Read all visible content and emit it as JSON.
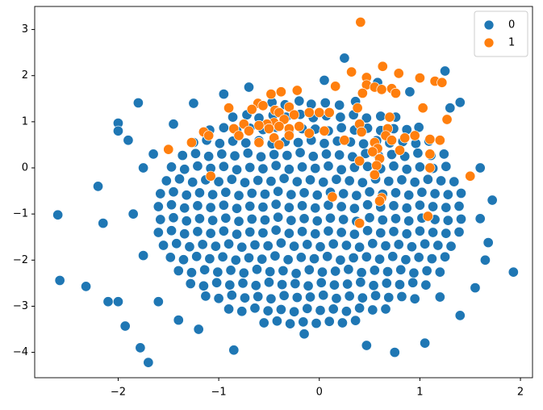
{
  "chart_data": {
    "type": "scatter",
    "xlim": [
      -2.83,
      2.12
    ],
    "ylim": [
      -4.55,
      3.5
    ],
    "xticks": [
      {
        "value": -2,
        "label": "−2"
      },
      {
        "value": -1,
        "label": "−1"
      },
      0,
      1,
      2
    ],
    "yticks": [
      {
        "value": -4,
        "label": "−4"
      },
      {
        "value": -3,
        "label": "−3"
      },
      {
        "value": -2,
        "label": "−2"
      },
      {
        "value": -1,
        "label": "−1"
      },
      0,
      1,
      2,
      3
    ],
    "grid": false,
    "legend": "upper right",
    "series": [
      {
        "name": "0",
        "color": "#1f77b4",
        "x": [
          -0.47,
          -0.34,
          -0.2,
          -0.08,
          0.06,
          0.2,
          0.36,
          -0.86,
          -0.72,
          -0.6,
          -0.46,
          -0.33,
          -0.19,
          -0.06,
          0.07,
          0.21,
          0.34,
          0.47,
          0.61,
          0.76,
          -1.09,
          -0.95,
          -0.82,
          -0.69,
          -0.56,
          -0.43,
          -0.3,
          -0.17,
          -0.04,
          0.09,
          0.22,
          0.35,
          0.48,
          0.61,
          0.74,
          0.87,
          0.99,
          -1.25,
          -1.12,
          -0.99,
          -0.86,
          -0.73,
          -0.6,
          -0.47,
          -0.34,
          -0.21,
          -0.08,
          0.05,
          0.18,
          0.31,
          0.44,
          0.57,
          0.7,
          0.83,
          0.96,
          1.09,
          -1.36,
          -1.23,
          -1.1,
          -0.97,
          -0.84,
          -0.71,
          -0.58,
          -0.45,
          -0.32,
          -0.19,
          -0.06,
          0.07,
          0.2,
          0.33,
          0.46,
          0.59,
          0.72,
          0.85,
          0.98,
          1.11,
          1.24,
          -1.47,
          -1.34,
          -1.21,
          -1.08,
          -0.95,
          -0.82,
          -0.69,
          -0.56,
          -0.43,
          -0.3,
          -0.17,
          -0.04,
          0.09,
          0.22,
          0.35,
          0.48,
          0.61,
          0.74,
          0.87,
          1.0,
          1.13,
          1.26,
          -1.52,
          -1.39,
          -1.26,
          -1.13,
          -1.0,
          -0.87,
          -0.74,
          -0.61,
          -0.48,
          -0.35,
          -0.22,
          -0.09,
          0.04,
          0.17,
          0.3,
          0.43,
          0.56,
          0.69,
          0.82,
          0.95,
          1.08,
          1.21,
          1.34,
          -1.58,
          -1.45,
          -1.32,
          -1.19,
          -1.06,
          -0.93,
          -0.8,
          -0.67,
          -0.54,
          -0.41,
          -0.28,
          -0.15,
          -0.02,
          0.11,
          0.24,
          0.37,
          0.5,
          0.63,
          0.76,
          0.89,
          1.02,
          1.15,
          1.28,
          1.41,
          -1.6,
          -1.47,
          -1.34,
          -1.21,
          -1.08,
          -0.95,
          -0.82,
          -0.69,
          -0.56,
          -0.43,
          -0.3,
          -0.17,
          -0.04,
          0.09,
          0.22,
          0.35,
          0.48,
          0.61,
          0.74,
          0.87,
          1.0,
          1.13,
          1.26,
          1.39,
          -1.58,
          -1.45,
          -1.32,
          -1.19,
          -1.06,
          -0.93,
          -0.8,
          -0.67,
          -0.54,
          -0.41,
          -0.28,
          -0.15,
          -0.02,
          0.11,
          0.24,
          0.37,
          0.5,
          0.63,
          0.76,
          0.89,
          1.02,
          1.15,
          1.28,
          1.41,
          -1.6,
          -1.47,
          -1.34,
          -1.21,
          -1.08,
          -0.95,
          -0.82,
          -0.69,
          -0.56,
          -0.43,
          -0.3,
          -0.17,
          -0.04,
          0.09,
          0.22,
          0.35,
          0.48,
          0.61,
          0.74,
          0.87,
          1.0,
          1.13,
          1.26,
          1.39,
          -1.55,
          -1.42,
          -1.29,
          -1.16,
          -1.03,
          -0.9,
          -0.77,
          -0.64,
          -0.51,
          -0.38,
          -0.25,
          -0.12,
          0.01,
          0.14,
          0.27,
          0.4,
          0.53,
          0.66,
          0.79,
          0.92,
          1.05,
          1.18,
          1.31,
          -1.48,
          -1.35,
          -1.22,
          -1.09,
          -0.96,
          -0.83,
          -0.7,
          -0.57,
          -0.44,
          -0.31,
          -0.18,
          -0.05,
          0.08,
          0.21,
          0.34,
          0.47,
          0.6,
          0.73,
          0.86,
          0.99,
          1.12,
          1.25,
          -1.4,
          -1.27,
          -1.14,
          -1.01,
          -0.88,
          -0.75,
          -0.62,
          -0.49,
          -0.36,
          -0.23,
          -0.1,
          0.03,
          0.16,
          0.29,
          0.42,
          0.55,
          0.68,
          0.81,
          0.94,
          1.07,
          1.2,
          -1.28,
          -1.15,
          -1.02,
          -0.89,
          -0.76,
          -0.63,
          -0.5,
          -0.37,
          -0.24,
          -0.11,
          0.02,
          0.15,
          0.28,
          0.41,
          0.54,
          0.67,
          0.8,
          0.93,
          1.06,
          -1.13,
          -1.0,
          -0.87,
          -0.74,
          -0.61,
          -0.48,
          -0.35,
          -0.22,
          -0.09,
          0.04,
          0.17,
          0.3,
          0.43,
          0.56,
          0.69,
          0.82,
          0.95,
          -0.9,
          -0.77,
          -0.64,
          -0.51,
          -0.38,
          -0.25,
          -0.12,
          0.01,
          0.14,
          0.27,
          0.4,
          0.53,
          0.66,
          -0.55,
          -0.42,
          -0.29,
          -0.16,
          -0.03,
          0.1,
          0.23,
          0.36,
          -2.6,
          -2.58,
          -2.32,
          -2.0,
          -2.0,
          -1.8,
          -1.93,
          -1.78,
          -1.7,
          -2.2,
          -2.15,
          -2.1,
          -2.0,
          -1.9,
          -1.65,
          1.93,
          1.68,
          1.65,
          1.72,
          1.6,
          1.4,
          1.25,
          0.25,
          0.58,
          -0.85,
          -0.15,
          0.47,
          0.75,
          1.05,
          1.4,
          1.2,
          -1.2,
          -1.4,
          -1.6,
          1.55,
          1.6,
          -1.75,
          -1.85,
          -1.75,
          -1.45,
          -1.25,
          -0.95,
          -0.7,
          0.05,
          0.9,
          1.3
        ],
        "values": [
          1.42,
          1.37,
          1.45,
          1.38,
          1.41,
          1.36,
          1.44,
          1.1,
          1.15,
          1.08,
          1.14,
          1.1,
          1.16,
          1.09,
          1.13,
          1.1,
          1.15,
          1.08,
          1.12,
          1.1,
          0.82,
          0.87,
          0.8,
          0.86,
          0.83,
          0.88,
          0.81,
          0.85,
          0.84,
          0.8,
          0.87,
          0.82,
          0.86,
          0.81,
          0.85,
          0.83,
          0.88,
          0.55,
          0.6,
          0.53,
          0.58,
          0.54,
          0.59,
          0.52,
          0.57,
          0.55,
          0.6,
          0.53,
          0.58,
          0.56,
          0.52,
          0.59,
          0.54,
          0.57,
          0.53,
          0.58,
          0.27,
          0.31,
          0.25,
          0.3,
          0.26,
          0.32,
          0.24,
          0.29,
          0.27,
          0.33,
          0.25,
          0.3,
          0.28,
          0.24,
          0.31,
          0.26,
          0.29,
          0.25,
          0.32,
          0.27,
          0.3,
          0.02,
          -0.03,
          0.04,
          -0.01,
          0.03,
          -0.04,
          0.01,
          -0.02,
          0.05,
          -0.03,
          0.02,
          -0.01,
          0.04,
          -0.04,
          0.01,
          0.03,
          -0.02,
          0.04,
          -0.03,
          0.02,
          -0.01,
          0.03,
          -0.28,
          -0.24,
          -0.31,
          -0.26,
          -0.3,
          -0.25,
          -0.32,
          -0.27,
          -0.29,
          -0.23,
          -0.3,
          -0.26,
          -0.31,
          -0.25,
          -0.28,
          -0.32,
          -0.24,
          -0.29,
          -0.26,
          -0.31,
          -0.25,
          -0.28,
          -0.3,
          -0.56,
          -0.52,
          -0.59,
          -0.54,
          -0.58,
          -0.53,
          -0.6,
          -0.55,
          -0.57,
          -0.51,
          -0.58,
          -0.54,
          -0.59,
          -0.53,
          -0.56,
          -0.6,
          -0.52,
          -0.57,
          -0.54,
          -0.59,
          -0.53,
          -0.56,
          -0.58,
          -0.55,
          -0.84,
          -0.8,
          -0.87,
          -0.82,
          -0.86,
          -0.81,
          -0.88,
          -0.83,
          -0.85,
          -0.79,
          -0.86,
          -0.82,
          -0.87,
          -0.81,
          -0.84,
          -0.88,
          -0.8,
          -0.85,
          -0.82,
          -0.87,
          -0.81,
          -0.84,
          -0.86,
          -0.83,
          -1.12,
          -1.08,
          -1.15,
          -1.1,
          -1.14,
          -1.09,
          -1.16,
          -1.11,
          -1.13,
          -1.07,
          -1.14,
          -1.1,
          -1.15,
          -1.09,
          -1.12,
          -1.16,
          -1.08,
          -1.13,
          -1.1,
          -1.15,
          -1.09,
          -1.12,
          -1.14,
          -1.11,
          -1.4,
          -1.36,
          -1.43,
          -1.38,
          -1.42,
          -1.37,
          -1.44,
          -1.39,
          -1.41,
          -1.35,
          -1.42,
          -1.38,
          -1.43,
          -1.37,
          -1.4,
          -1.44,
          -1.36,
          -1.41,
          -1.38,
          -1.43,
          -1.37,
          -1.4,
          -1.42,
          -1.39,
          -1.68,
          -1.64,
          -1.71,
          -1.66,
          -1.7,
          -1.65,
          -1.72,
          -1.67,
          -1.69,
          -1.63,
          -1.7,
          -1.66,
          -1.71,
          -1.65,
          -1.68,
          -1.72,
          -1.64,
          -1.69,
          -1.66,
          -1.71,
          -1.65,
          -1.68,
          -1.7,
          -1.94,
          -1.99,
          -1.92,
          -1.97,
          -1.93,
          -2.0,
          -1.95,
          -1.98,
          -1.91,
          -1.99,
          -1.94,
          -1.97,
          -1.92,
          -2.0,
          -1.95,
          -1.93,
          -1.98,
          -1.92,
          -1.99,
          -1.94,
          -1.97,
          -1.93,
          -2.23,
          -2.27,
          -2.21,
          -2.26,
          -2.22,
          -2.28,
          -2.2,
          -2.25,
          -2.23,
          -2.29,
          -2.21,
          -2.26,
          -2.24,
          -2.2,
          -2.27,
          -2.22,
          -2.25,
          -2.21,
          -2.28,
          -2.23,
          -2.26,
          -2.51,
          -2.56,
          -2.49,
          -2.54,
          -2.5,
          -2.55,
          -2.48,
          -2.53,
          -2.51,
          -2.56,
          -2.49,
          -2.54,
          -2.52,
          -2.48,
          -2.55,
          -2.5,
          -2.53,
          -2.49,
          -2.54,
          -2.78,
          -2.83,
          -2.76,
          -2.82,
          -2.79,
          -2.84,
          -2.77,
          -2.81,
          -2.8,
          -2.76,
          -2.83,
          -2.78,
          -2.82,
          -2.77,
          -2.81,
          -2.79,
          -2.84,
          -3.06,
          -3.11,
          -3.04,
          -3.1,
          -3.07,
          -3.12,
          -3.05,
          -3.09,
          -3.06,
          -3.11,
          -3.04,
          -3.08,
          -3.06,
          -3.36,
          -3.32,
          -3.38,
          -3.34,
          -3.37,
          -3.33,
          -3.36,
          -3.31,
          -1.02,
          -2.44,
          -2.57,
          0.97,
          0.8,
          1.41,
          -3.43,
          -3.9,
          -4.22,
          -0.4,
          -1.2,
          -2.9,
          -2.9,
          0.6,
          0.3,
          -2.26,
          -1.62,
          -2.0,
          -0.7,
          0.0,
          1.42,
          2.1,
          2.38,
          1.85,
          -3.95,
          -3.6,
          -3.85,
          -4.0,
          -3.8,
          -3.2,
          -2.8,
          -3.5,
          -3.3,
          -2.9,
          -2.6,
          -1.1,
          -1.9,
          -1.0,
          0.0,
          0.95,
          1.4,
          1.6,
          1.75,
          1.9,
          1.65,
          1.3
        ]
      },
      {
        "name": "1",
        "color": "#ff7f0e",
        "x": [
          0.41,
          0.63,
          0.32,
          0.47,
          0.79,
          1.0,
          1.15,
          1.22,
          0.47,
          0.55,
          0.62,
          0.72,
          0.76,
          0.43,
          0.16,
          -0.38,
          -0.22,
          -0.48,
          -0.61,
          -0.56,
          -0.67,
          -0.9,
          -0.44,
          -0.3,
          -0.4,
          -0.25,
          -0.1,
          0.0,
          0.1,
          -0.35,
          -0.45,
          -0.52,
          -0.6,
          -0.75,
          -0.85,
          -0.7,
          -0.8,
          -0.5,
          -0.4,
          -0.3,
          -0.2,
          -0.3,
          -0.45,
          -0.6,
          -0.4,
          -0.1,
          0.05,
          0.38,
          0.4,
          0.42,
          0.7,
          0.68,
          0.66,
          0.72,
          0.85,
          0.95,
          1.03,
          1.1,
          1.2,
          1.27,
          0.55,
          0.58,
          0.53,
          0.6,
          0.57,
          0.4,
          0.8,
          1.1,
          1.1,
          1.5,
          0.55,
          0.62,
          0.6,
          0.13,
          0.4,
          1.08,
          -1.08,
          -1.5,
          -1.27,
          -1.15,
          -1.1,
          0.25
        ],
        "values": [
          3.16,
          2.2,
          2.08,
          1.96,
          2.05,
          1.95,
          1.88,
          1.85,
          1.8,
          1.75,
          1.7,
          1.72,
          1.62,
          1.62,
          1.77,
          1.65,
          1.68,
          1.6,
          1.4,
          1.35,
          1.27,
          1.3,
          1.25,
          1.32,
          1.2,
          1.15,
          1.2,
          1.2,
          1.2,
          1.05,
          0.98,
          0.95,
          0.92,
          0.95,
          0.85,
          0.8,
          0.7,
          0.85,
          0.9,
          0.85,
          0.9,
          0.7,
          0.65,
          0.55,
          0.5,
          0.75,
          0.8,
          1.3,
          0.95,
          0.78,
          1.1,
          0.85,
          0.7,
          0.6,
          0.65,
          0.7,
          1.3,
          0.62,
          0.6,
          1.05,
          0.55,
          0.42,
          0.35,
          0.2,
          0.05,
          0.15,
          0.38,
          0.3,
          0.0,
          -0.18,
          -0.15,
          -0.65,
          -0.72,
          -0.63,
          -1.2,
          -1.05,
          -0.18,
          0.4,
          0.55,
          0.78,
          0.7,
          0.6
        ]
      }
    ]
  }
}
